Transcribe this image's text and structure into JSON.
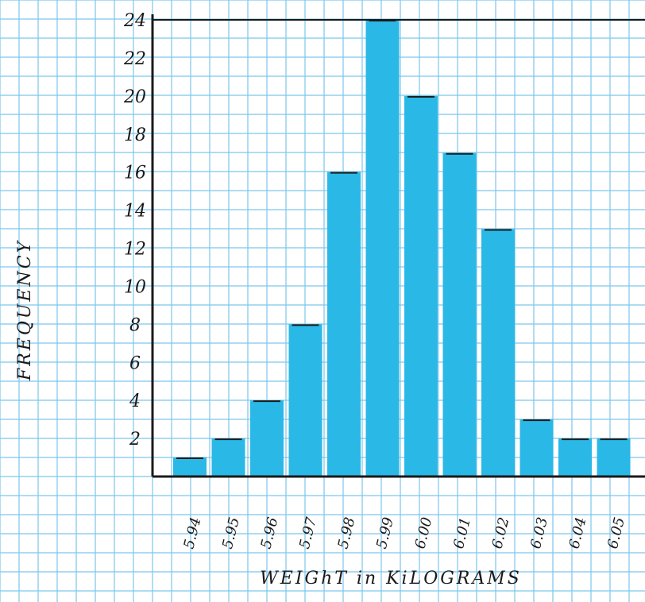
{
  "chart_data": {
    "type": "bar",
    "title": "",
    "xlabel": "WEIGhT in KiLOGRAMS",
    "ylabel": "FREQUENCY",
    "categories": [
      "5.94",
      "5.95",
      "5.96",
      "5.97",
      "5.98",
      "5.99",
      "6.00",
      "6.01",
      "6.02",
      "6.03",
      "6.04",
      "6.05"
    ],
    "values": [
      1,
      2,
      4,
      8,
      16,
      24,
      20,
      17,
      13,
      3,
      2,
      2
    ],
    "yticks": [
      "2",
      "4",
      "6",
      "8",
      "10",
      "12",
      "14",
      "16",
      "18",
      "20",
      "22",
      "24"
    ],
    "ylim": [
      0,
      24
    ],
    "grid": true,
    "legend": "none",
    "colors": {
      "bar": "#2ab8e6",
      "bar_cap": "#1a1a1a",
      "grid": "#7cc6ec",
      "axis": "#1a1a1a",
      "paper": "#ffffff"
    }
  }
}
